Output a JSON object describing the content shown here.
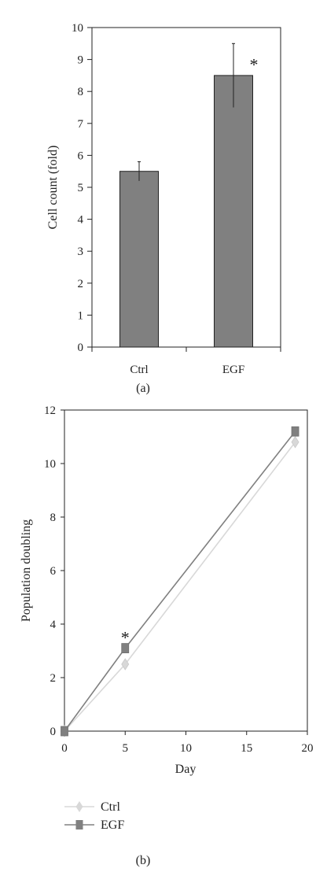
{
  "chart_data": [
    {
      "type": "bar",
      "panel_label": "(a)",
      "ylabel": "Cell count (fold)",
      "ylim": [
        0,
        10
      ],
      "yticks": [
        "0",
        "1",
        "2",
        "3",
        "4",
        "5",
        "6",
        "7",
        "8",
        "9",
        "10"
      ],
      "categories": [
        "Ctrl",
        "EGF"
      ],
      "values": [
        5.5,
        8.5
      ],
      "errors": [
        0.3,
        1.0
      ],
      "annotations": [
        "",
        "*"
      ],
      "bar_color": "#808080"
    },
    {
      "type": "line",
      "panel_label": "(b)",
      "xlabel": "Day",
      "ylabel": "Population doubling",
      "xlim": [
        0,
        20
      ],
      "ylim": [
        0,
        12
      ],
      "xticks": [
        "0",
        "5",
        "10",
        "15",
        "20"
      ],
      "yticks": [
        "0",
        "2",
        "4",
        "6",
        "8",
        "10",
        "12"
      ],
      "legend_position": "bottom-left",
      "series": [
        {
          "name": "Ctrl",
          "marker": "diamond",
          "color": "#d8d8d8",
          "x": [
            0,
            5,
            19
          ],
          "y": [
            0,
            2.5,
            10.8
          ]
        },
        {
          "name": "EGF",
          "marker": "square",
          "color": "#808080",
          "x": [
            0,
            5,
            19
          ],
          "y": [
            0,
            3.1,
            11.2
          ]
        }
      ],
      "annotations": [
        {
          "text": "*",
          "x": 5,
          "y": 3.1
        }
      ]
    }
  ]
}
